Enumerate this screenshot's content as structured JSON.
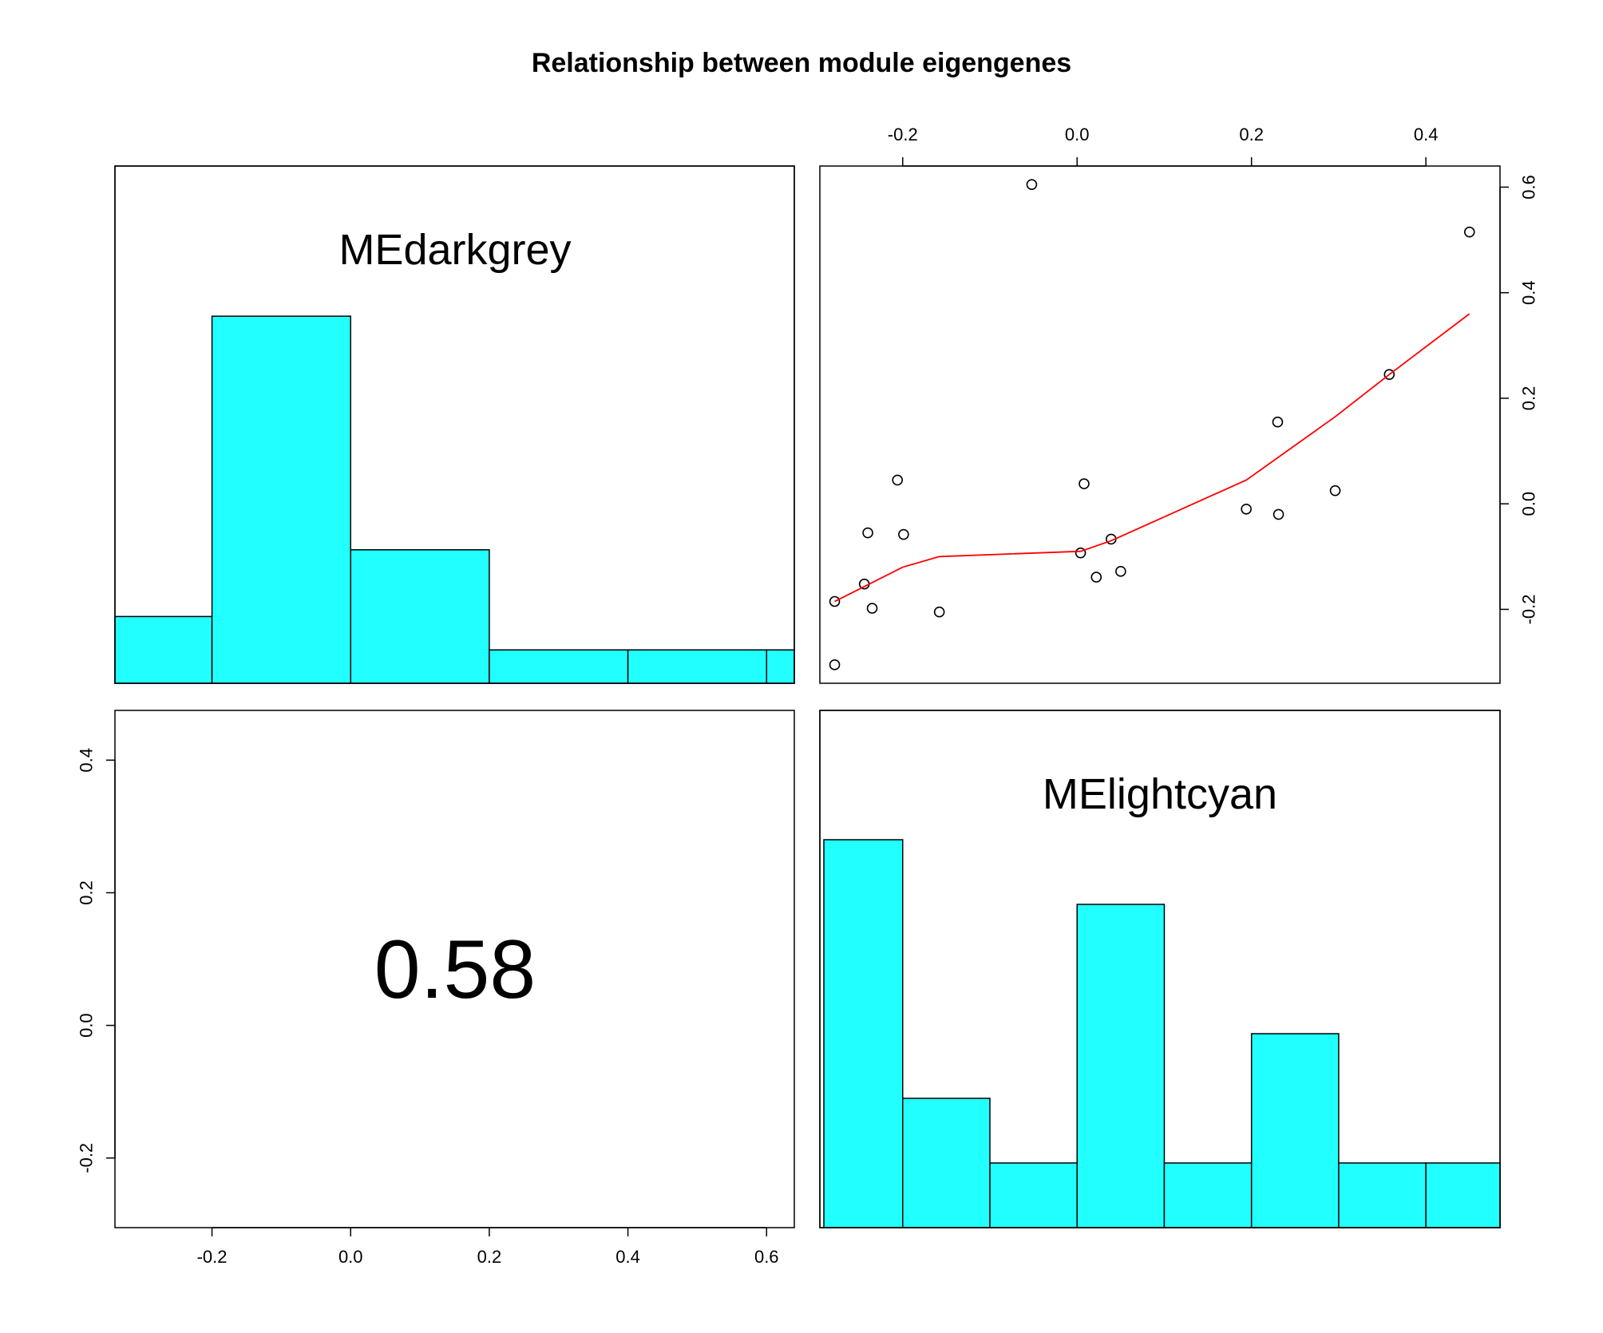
{
  "chart_data": {
    "type": "scatter-matrix",
    "title": "Relationship between module eigengenes",
    "variables": [
      "MEdarkgrey",
      "MElightcyan"
    ],
    "colors": {
      "hist_fill": "#22ffff",
      "smooth_line": "#ff0000",
      "axis": "#000000"
    },
    "correlation": {
      "label": "0.58",
      "value": 0.58
    },
    "axes": {
      "bottom": {
        "range": [
          -0.34,
          0.64
        ],
        "ticks": [
          -0.2,
          0.0,
          0.2,
          0.4,
          0.6
        ],
        "labels": [
          "-0.2",
          "0.0",
          "0.2",
          "0.4",
          "0.6"
        ]
      },
      "top": {
        "range": [
          -0.295,
          0.485
        ],
        "ticks": [
          -0.2,
          0.0,
          0.2,
          0.4
        ],
        "labels": [
          "-0.2",
          "0.0",
          "0.2",
          "0.4"
        ]
      },
      "right": {
        "range": [
          -0.34,
          0.64
        ],
        "ticks": [
          -0.2,
          0.0,
          0.2,
          0.4,
          0.6
        ],
        "labels": [
          "-0.2",
          "0.0",
          "0.2",
          "0.4",
          "0.6"
        ]
      },
      "left": {
        "range": [
          -0.305,
          0.475
        ],
        "ticks": [
          -0.2,
          0.0,
          0.2,
          0.4
        ],
        "labels": [
          "-0.2",
          "0.0",
          "0.2",
          "0.4"
        ]
      }
    },
    "hist_darkgrey": {
      "breaks": [
        -0.4,
        -0.2,
        0.0,
        0.2,
        0.4,
        0.6,
        0.8
      ],
      "counts": [
        2,
        11,
        4,
        1,
        1,
        1
      ],
      "ymax": 15.5
    },
    "hist_lightcyan": {
      "breaks": [
        -0.3,
        -0.2,
        -0.1,
        0.0,
        0.1,
        0.2,
        0.3,
        0.4,
        0.5
      ],
      "counts": [
        5,
        1,
        0,
        4,
        0,
        2,
        0,
        0
      ],
      "yoffset": -1,
      "ymax": 7
    },
    "scatter": {
      "xlabel": "MElightcyan",
      "ylabel": "MEdarkgrey",
      "points": [
        [
          -0.278,
          -0.305
        ],
        [
          -0.278,
          -0.185
        ],
        [
          -0.244,
          -0.152
        ],
        [
          -0.24,
          -0.055
        ],
        [
          -0.235,
          -0.198
        ],
        [
          -0.206,
          0.045
        ],
        [
          -0.199,
          -0.058
        ],
        [
          -0.158,
          -0.205
        ],
        [
          -0.052,
          0.605
        ],
        [
          0.004,
          -0.093
        ],
        [
          0.008,
          0.038
        ],
        [
          0.022,
          -0.139
        ],
        [
          0.039,
          -0.067
        ],
        [
          0.05,
          -0.128
        ],
        [
          0.194,
          -0.01
        ],
        [
          0.23,
          0.155
        ],
        [
          0.231,
          -0.02
        ],
        [
          0.296,
          0.025
        ],
        [
          0.358,
          0.245
        ],
        [
          0.45,
          0.515
        ]
      ],
      "smooth": [
        [
          -0.278,
          -0.185
        ],
        [
          -0.2,
          -0.12
        ],
        [
          -0.158,
          -0.1
        ],
        [
          0.004,
          -0.09
        ],
        [
          0.039,
          -0.07
        ],
        [
          0.194,
          0.045
        ],
        [
          0.296,
          0.165
        ],
        [
          0.358,
          0.245
        ],
        [
          0.45,
          0.36
        ]
      ]
    }
  }
}
